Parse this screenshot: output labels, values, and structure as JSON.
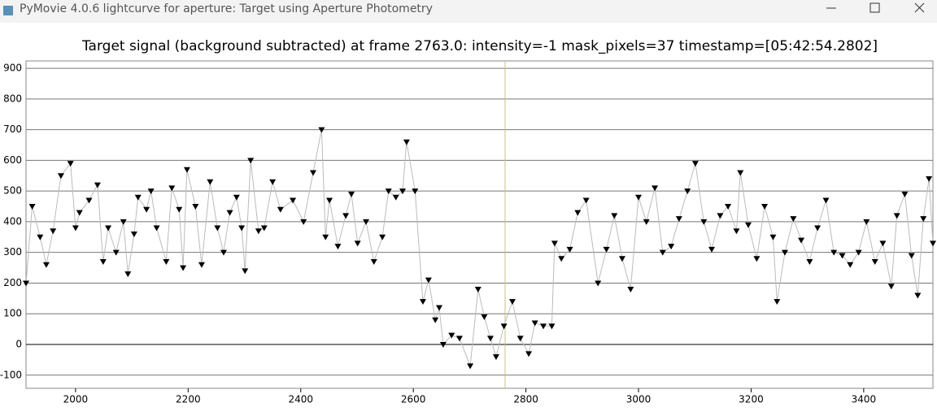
{
  "window_title": "PyMovie 4.0.6 lightcurve for aperture: Target using Aperture Photometry",
  "chart_data": {
    "type": "scatter",
    "title": "Target signal (background subtracted) at frame 2763.0: intensity=-1 mask_pixels=37 timestamp=[05:42:54.2802]",
    "cursor_x": 2763,
    "x": [
      1912,
      1923,
      1937,
      1948,
      1960,
      1974,
      1991,
      2000,
      2007,
      2024,
      2039,
      2049,
      2058,
      2072,
      2085,
      2093,
      2104,
      2111,
      2126,
      2134,
      2144,
      2161,
      2171,
      2184,
      2191,
      2198,
      2213,
      2224,
      2239,
      2252,
      2263,
      2274,
      2286,
      2295,
      2301,
      2311,
      2325,
      2335,
      2350,
      2364,
      2386,
      2405,
      2422,
      2437,
      2444,
      2451,
      2466,
      2480,
      2490,
      2501,
      2516,
      2530,
      2545,
      2556,
      2569,
      2581,
      2588,
      2603,
      2617,
      2627,
      2639,
      2646,
      2653,
      2668,
      2682,
      2701,
      2715,
      2726,
      2737,
      2747,
      2761,
      2776,
      2790,
      2805,
      2816,
      2831,
      2846,
      2851,
      2863,
      2878,
      2892,
      2907,
      2928,
      2943,
      2957,
      2971,
      2986,
      3000,
      3014,
      3029,
      3043,
      3058,
      3072,
      3087,
      3101,
      3116,
      3130,
      3145,
      3159,
      3174,
      3181,
      3195,
      3210,
      3224,
      3239,
      3246,
      3260,
      3275,
      3289,
      3304,
      3318,
      3333,
      3347,
      3362,
      3376,
      3391,
      3405,
      3420,
      3434,
      3449,
      3459,
      3473,
      3485,
      3496,
      3506,
      3516,
      3523
    ],
    "series": [
      {
        "color": "#000000",
        "line_color": "#bbbbbb",
        "values": [
          200,
          450,
          350,
          260,
          370,
          550,
          590,
          380,
          430,
          470,
          520,
          270,
          380,
          300,
          400,
          230,
          360,
          480,
          440,
          500,
          380,
          270,
          510,
          440,
          250,
          570,
          450,
          260,
          530,
          380,
          300,
          430,
          480,
          380,
          240,
          600,
          370,
          380,
          530,
          440,
          470,
          400,
          560,
          700,
          350,
          470,
          320,
          420,
          490,
          330,
          400,
          270,
          350,
          500,
          480,
          500,
          660,
          500,
          140,
          210,
          80,
          120,
          0,
          30,
          20,
          -70,
          180,
          90,
          20,
          -40,
          60,
          140,
          20,
          -30,
          70,
          60,
          60,
          330,
          280,
          310,
          430,
          470,
          200,
          310,
          420,
          280,
          180,
          480,
          400,
          510,
          300,
          320,
          410,
          500,
          590,
          400,
          310,
          420,
          450,
          370,
          560,
          390,
          280,
          450,
          350,
          140,
          300,
          410,
          340,
          270,
          380,
          470,
          300,
          290,
          260,
          300,
          400,
          270,
          330,
          190,
          420,
          490,
          290,
          160,
          410,
          540,
          330
        ]
      }
    ],
    "xlim": [
      1912,
      3523
    ],
    "xticks": [
      2000,
      2200,
      2400,
      2600,
      2800,
      3000,
      3200,
      3400
    ],
    "ylim": [
      -143,
      924
    ],
    "yticks": [
      -100,
      0,
      100,
      200,
      300,
      400,
      500,
      600,
      700,
      800,
      900
    ],
    "grid": true
  }
}
